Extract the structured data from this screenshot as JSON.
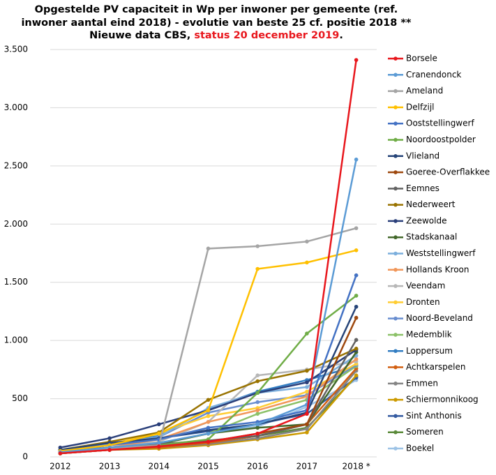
{
  "chart_data": {
    "type": "line",
    "title": [
      "Opgestelde PV capaciteit in Wp per inwoner per gemeente (ref.",
      "inwoner aantal eind 2018) - evolutie van beste 25 cf. positie 2018 **",
      "Nieuwe data CBS, "
    ],
    "title_highlight": "status 20 december 2019",
    "title_end": ".",
    "categories": [
      "2012",
      "2013",
      "2014",
      "2015",
      "2016",
      "2017",
      "2018 *"
    ],
    "ylim": [
      0,
      3500
    ],
    "yticks": [
      0,
      500,
      {
        "value": 1000,
        "label": "1.000"
      },
      {
        "value": 1500,
        "label": "1.500"
      },
      {
        "value": 2000,
        "label": "2.000"
      },
      {
        "value": 2500,
        "label": "2.500"
      },
      {
        "value": 3000,
        "label": "3.000"
      },
      {
        "value": 3500,
        "label": "3.500"
      }
    ],
    "grid": true,
    "legend": "right",
    "series": [
      {
        "name": "Borsele",
        "color": "#e8161c",
        "values": [
          30,
          60,
          90,
          130,
          200,
          370,
          3410
        ]
      },
      {
        "name": "Cranendonck",
        "color": "#5b9bd5",
        "values": [
          40,
          80,
          120,
          200,
          280,
          450,
          2555
        ]
      },
      {
        "name": "Ameland",
        "color": "#a5a5a5",
        "values": [
          40,
          70,
          100,
          1790,
          1810,
          1850,
          1965
        ]
      },
      {
        "name": "Delfzijl",
        "color": "#ffc000",
        "values": [
          50,
          100,
          200,
          400,
          1615,
          1670,
          1775
        ]
      },
      {
        "name": "Ooststellingwerf",
        "color": "#4472c4",
        "values": [
          40,
          100,
          150,
          250,
          300,
          400,
          1560
        ]
      },
      {
        "name": "Noordoostpolder",
        "color": "#70ad47",
        "values": [
          30,
          70,
          100,
          150,
          550,
          1060,
          1385
        ]
      },
      {
        "name": "Vlieland",
        "color": "#264478",
        "values": [
          60,
          120,
          160,
          230,
          280,
          380,
          1290
        ]
      },
      {
        "name": "Goeree-Overflakkee",
        "color": "#9e480e",
        "values": [
          30,
          60,
          90,
          130,
          200,
          280,
          1195
        ]
      },
      {
        "name": "Eemnes",
        "color": "#636363",
        "values": [
          40,
          80,
          110,
          140,
          180,
          280,
          1005
        ]
      },
      {
        "name": "Nederweert",
        "color": "#997300",
        "values": [
          60,
          130,
          210,
          490,
          650,
          740,
          930
        ]
      },
      {
        "name": "Zeewolde",
        "color": "#2a3f7a",
        "values": [
          80,
          160,
          280,
          400,
          550,
          640,
          920
        ]
      },
      {
        "name": "Stadskanaal",
        "color": "#43682b",
        "values": [
          30,
          70,
          110,
          200,
          250,
          280,
          900
        ]
      },
      {
        "name": "Weststellingwerf",
        "color": "#7cafdd",
        "values": [
          50,
          110,
          170,
          420,
          550,
          600,
          870
        ]
      },
      {
        "name": "Hollands Kroon",
        "color": "#f1975a",
        "values": [
          40,
          80,
          150,
          300,
          400,
          520,
          840
        ]
      },
      {
        "name": "Veendam",
        "color": "#b7b7b7",
        "values": [
          40,
          80,
          130,
          300,
          700,
          750,
          820
        ]
      },
      {
        "name": "Dronten",
        "color": "#ffcd33",
        "values": [
          50,
          110,
          200,
          350,
          420,
          560,
          800
        ]
      },
      {
        "name": "Noord-Beveland",
        "color": "#698ed0",
        "values": [
          40,
          100,
          170,
          380,
          470,
          530,
          790
        ]
      },
      {
        "name": "Medemblik",
        "color": "#8cc168",
        "values": [
          30,
          70,
          110,
          200,
          370,
          490,
          780
        ]
      },
      {
        "name": "Loppersum",
        "color": "#327dc2",
        "values": [
          50,
          110,
          180,
          410,
          560,
          660,
          780
        ]
      },
      {
        "name": "Achtkarspelen",
        "color": "#d26012",
        "values": [
          30,
          60,
          80,
          120,
          180,
          280,
          760
        ]
      },
      {
        "name": "Emmen",
        "color": "#848484",
        "values": [
          30,
          60,
          80,
          110,
          160,
          240,
          740
        ]
      },
      {
        "name": "Schiermonnikoog",
        "color": "#cc9a00",
        "values": [
          30,
          60,
          70,
          100,
          150,
          210,
          700
        ]
      },
      {
        "name": "Sint Anthonis",
        "color": "#335aa1",
        "values": [
          60,
          110,
          160,
          220,
          280,
          370,
          680
        ]
      },
      {
        "name": "Someren",
        "color": "#5a8a39",
        "values": [
          30,
          60,
          90,
          120,
          180,
          250,
          690
        ]
      },
      {
        "name": "Boekel",
        "color": "#9dc3e6",
        "values": [
          40,
          80,
          120,
          200,
          260,
          430,
          660
        ]
      }
    ]
  }
}
